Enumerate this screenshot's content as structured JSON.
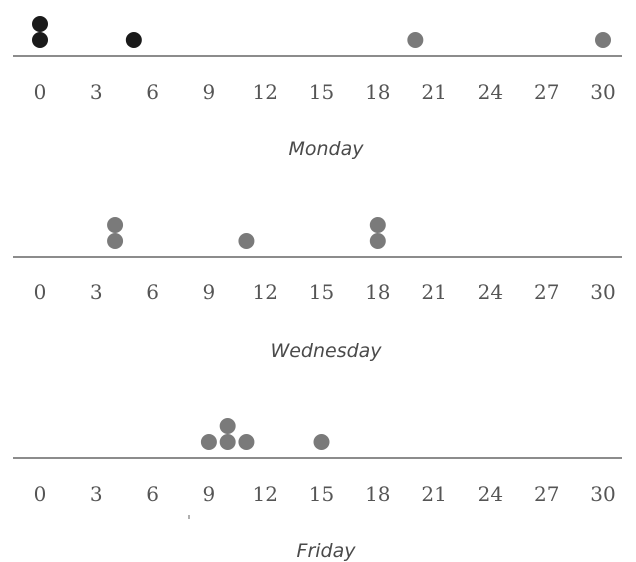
{
  "chart_data": [
    {
      "type": "dot-plot",
      "xlabel": "Monday",
      "ticks": [
        0,
        3,
        6,
        9,
        12,
        15,
        18,
        21,
        24,
        27,
        30
      ],
      "xlim": [
        0,
        30
      ],
      "values": [
        0,
        0,
        5,
        20,
        30
      ],
      "colors": [
        "#1a1a1a",
        "#1a1a1a",
        "#1a1a1a",
        "#7a7a7a",
        "#7a7a7a"
      ]
    },
    {
      "type": "dot-plot",
      "xlabel": "Wednesday",
      "ticks": [
        0,
        3,
        6,
        9,
        12,
        15,
        18,
        21,
        24,
        27,
        30
      ],
      "xlim": [
        0,
        30
      ],
      "values": [
        4,
        4,
        11,
        18,
        18
      ],
      "colors": [
        "#7a7a7a",
        "#7a7a7a",
        "#7a7a7a",
        "#7a7a7a",
        "#7a7a7a"
      ]
    },
    {
      "type": "dot-plot",
      "xlabel": "Friday",
      "ticks": [
        0,
        3,
        6,
        9,
        12,
        15,
        18,
        21,
        24,
        27,
        30
      ],
      "xlim": [
        0,
        30
      ],
      "values": [
        9,
        10,
        10,
        11,
        15
      ],
      "colors": [
        "#7a7a7a",
        "#7a7a7a",
        "#7a7a7a",
        "#7a7a7a",
        "#7a7a7a"
      ]
    }
  ]
}
